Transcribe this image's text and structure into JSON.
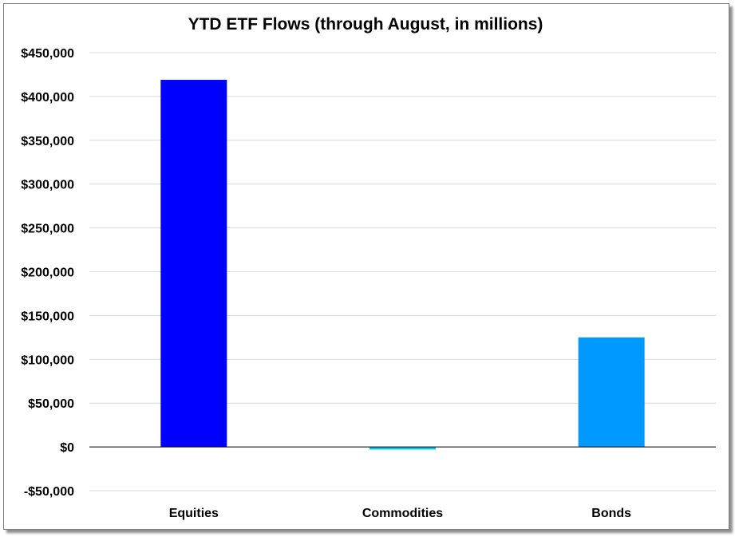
{
  "chart_data": {
    "type": "bar",
    "title": "YTD ETF Flows (through August, in millions)",
    "xlabel": "",
    "ylabel": "",
    "categories": [
      "Equities",
      "Commodities",
      "Bonds"
    ],
    "values": [
      419000,
      -3000,
      125000
    ],
    "colors": [
      "#0000ff",
      "#00c8e6",
      "#0099ff"
    ],
    "ylim": [
      -50000,
      450000
    ],
    "yticks": [
      -50000,
      0,
      50000,
      100000,
      150000,
      200000,
      250000,
      300000,
      350000,
      400000,
      450000
    ],
    "ytick_labels": [
      "-$50,000",
      "$0",
      "$50,000",
      "$100,000",
      "$150,000",
      "$200,000",
      "$250,000",
      "$300,000",
      "$350,000",
      "$400,000",
      "$450,000"
    ],
    "grid": true,
    "legend": "none"
  }
}
